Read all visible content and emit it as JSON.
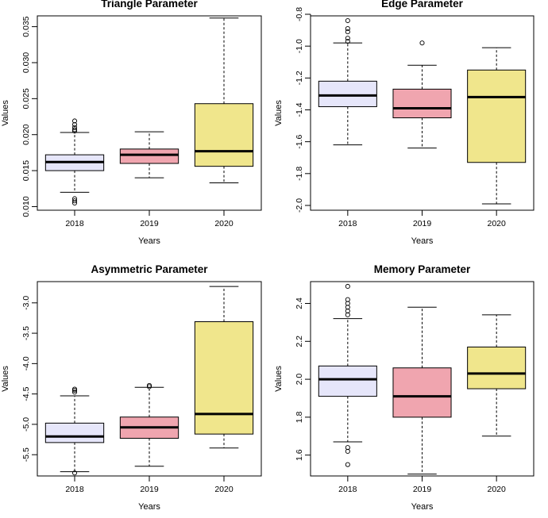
{
  "chart_data": [
    {
      "type": "box",
      "title": "Triangle Parameter",
      "xlabel": "Years",
      "ylabel": "Values",
      "categories": [
        "2018",
        "2019",
        "2020"
      ],
      "colors": [
        "#E6E6FA",
        "#F0A5AF",
        "#F0E68C"
      ],
      "ylim": [
        0.0095,
        0.0365
      ],
      "yticks": [
        0.01,
        0.015,
        0.02,
        0.025,
        0.03,
        0.035
      ],
      "ytick_labels": [
        "0.010",
        "0.015",
        "0.020",
        "0.025",
        "0.030",
        "0.035"
      ],
      "boxes": [
        {
          "whisker_low": 0.012,
          "q1": 0.015,
          "median": 0.0162,
          "q3": 0.0172,
          "whisker_high": 0.0203,
          "outliers": [
            0.0105,
            0.0108,
            0.0111,
            0.0205,
            0.0207,
            0.021,
            0.0214,
            0.0219
          ]
        },
        {
          "whisker_low": 0.014,
          "q1": 0.016,
          "median": 0.0172,
          "q3": 0.018,
          "whisker_high": 0.0204,
          "outliers": []
        },
        {
          "whisker_low": 0.0133,
          "q1": 0.0156,
          "median": 0.0177,
          "q3": 0.0243,
          "whisker_high": 0.0362,
          "outliers": []
        }
      ]
    },
    {
      "type": "box",
      "title": "Edge Parameter",
      "xlabel": "Years",
      "ylabel": "Values",
      "categories": [
        "2018",
        "2019",
        "2020"
      ],
      "colors": [
        "#E6E6FA",
        "#F0A5AF",
        "#F0E68C"
      ],
      "ylim": [
        -2.03,
        -0.81
      ],
      "yticks": [
        -2.0,
        -1.8,
        -1.6,
        -1.4,
        -1.2,
        -1.0,
        -0.8
      ],
      "ytick_labels": [
        "-2.0",
        "-1.8",
        "-1.6",
        "-1.4",
        "-1.2",
        "-1.0",
        "-0.8"
      ],
      "boxes": [
        {
          "whisker_low": -1.62,
          "q1": -1.38,
          "median": -1.31,
          "q3": -1.22,
          "whisker_high": -0.98,
          "outliers": [
            -0.84,
            -0.89,
            -0.91,
            -0.95,
            -0.97
          ]
        },
        {
          "whisker_low": -1.64,
          "q1": -1.45,
          "median": -1.39,
          "q3": -1.27,
          "whisker_high": -1.12,
          "outliers": [
            -0.98
          ]
        },
        {
          "whisker_low": -1.99,
          "q1": -1.73,
          "median": -1.32,
          "q3": -1.15,
          "whisker_high": -1.01,
          "outliers": []
        }
      ]
    },
    {
      "type": "box",
      "title": "Asymmetric Parameter",
      "xlabel": "Years",
      "ylabel": "Values",
      "categories": [
        "2018",
        "2019",
        "2020"
      ],
      "colors": [
        "#E6E6FA",
        "#F0A5AF",
        "#F0E68C"
      ],
      "ylim": [
        -5.85,
        -2.65
      ],
      "yticks": [
        -5.5,
        -5.0,
        -4.5,
        -4.0,
        -3.5,
        -3.0
      ],
      "ytick_labels": [
        "-5.5",
        "-5.0",
        "-4.5",
        "-4.0",
        "-3.5",
        "-3.0"
      ],
      "boxes": [
        {
          "whisker_low": -5.78,
          "q1": -5.3,
          "median": -5.2,
          "q3": -4.98,
          "whisker_high": -4.53,
          "outliers": [
            -5.8,
            -4.42,
            -4.44,
            -4.47
          ]
        },
        {
          "whisker_low": -5.69,
          "q1": -5.23,
          "median": -5.05,
          "q3": -4.88,
          "whisker_high": -4.39,
          "outliers": [
            -4.36,
            -4.38
          ]
        },
        {
          "whisker_low": -5.39,
          "q1": -5.16,
          "median": -4.83,
          "q3": -3.31,
          "whisker_high": -2.73,
          "outliers": []
        }
      ]
    },
    {
      "type": "box",
      "title": "Memory Parameter",
      "xlabel": "Years",
      "ylabel": "Values",
      "categories": [
        "2018",
        "2019",
        "2020"
      ],
      "colors": [
        "#E6E6FA",
        "#F0A5AF",
        "#F0E68C"
      ],
      "ylim": [
        1.49,
        2.515
      ],
      "yticks": [
        1.6,
        1.8,
        2.0,
        2.2,
        2.4
      ],
      "ytick_labels": [
        "1.6",
        "1.8",
        "2.0",
        "2.2",
        "2.4"
      ],
      "boxes": [
        {
          "whisker_low": 1.67,
          "q1": 1.91,
          "median": 2.0,
          "q3": 2.07,
          "whisker_high": 2.32,
          "outliers": [
            1.55,
            1.62,
            1.64,
            2.34,
            2.36,
            2.38,
            2.4,
            2.42,
            2.49
          ]
        },
        {
          "whisker_low": 1.5,
          "q1": 1.8,
          "median": 1.91,
          "q3": 2.06,
          "whisker_high": 2.38,
          "outliers": []
        },
        {
          "whisker_low": 1.7,
          "q1": 1.95,
          "median": 2.03,
          "q3": 2.17,
          "whisker_high": 2.34,
          "outliers": []
        }
      ]
    }
  ]
}
